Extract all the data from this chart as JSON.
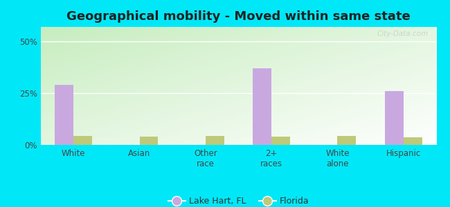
{
  "title": "Geographical mobility - Moved within same state",
  "categories": [
    "White",
    "Asian",
    "Other\nrace",
    "2+\nraces",
    "White\nalone",
    "Hispanic"
  ],
  "lake_hart_values": [
    29.0,
    0.0,
    0.0,
    37.0,
    0.0,
    26.0
  ],
  "florida_values": [
    4.2,
    4.0,
    4.2,
    4.0,
    4.2,
    3.8
  ],
  "lake_hart_color": "#c9a8e0",
  "florida_color": "#bec97a",
  "bg_outer": "#00e8f8",
  "bg_plot": "#d8f0d0",
  "yticks": [
    0,
    25,
    50
  ],
  "ylim": [
    0,
    57
  ],
  "bar_width": 0.28,
  "title_fontsize": 13,
  "legend_label_lake": "Lake Hart, FL",
  "legend_label_florida": "Florida",
  "watermark": "City-Data.com"
}
